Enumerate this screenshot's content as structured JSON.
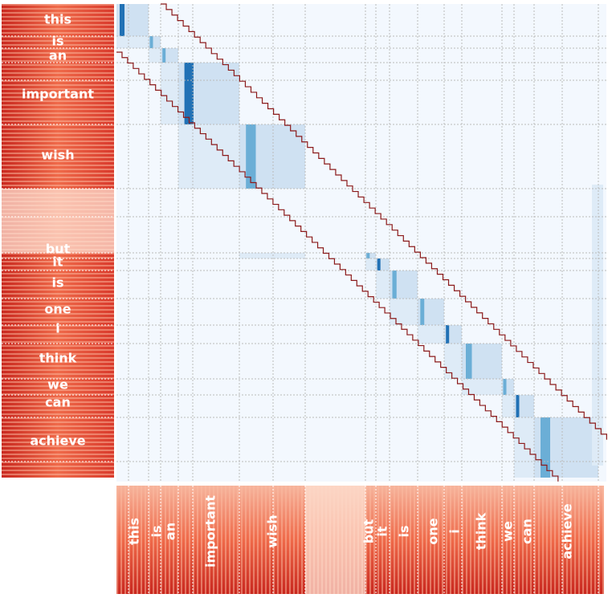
{
  "vertical_axis": {
    "words": [
      "this",
      "is",
      "an",
      "important",
      "wish",
      "but",
      "it",
      "is",
      "one",
      "i",
      "think",
      "we",
      "can",
      "achieve"
    ]
  },
  "horizontal_axis": {
    "words": [
      "this",
      "is",
      "an",
      "important",
      "wish",
      "but",
      "it",
      "is",
      "one",
      "i",
      "think",
      "we",
      "can",
      "achieve"
    ]
  }
}
